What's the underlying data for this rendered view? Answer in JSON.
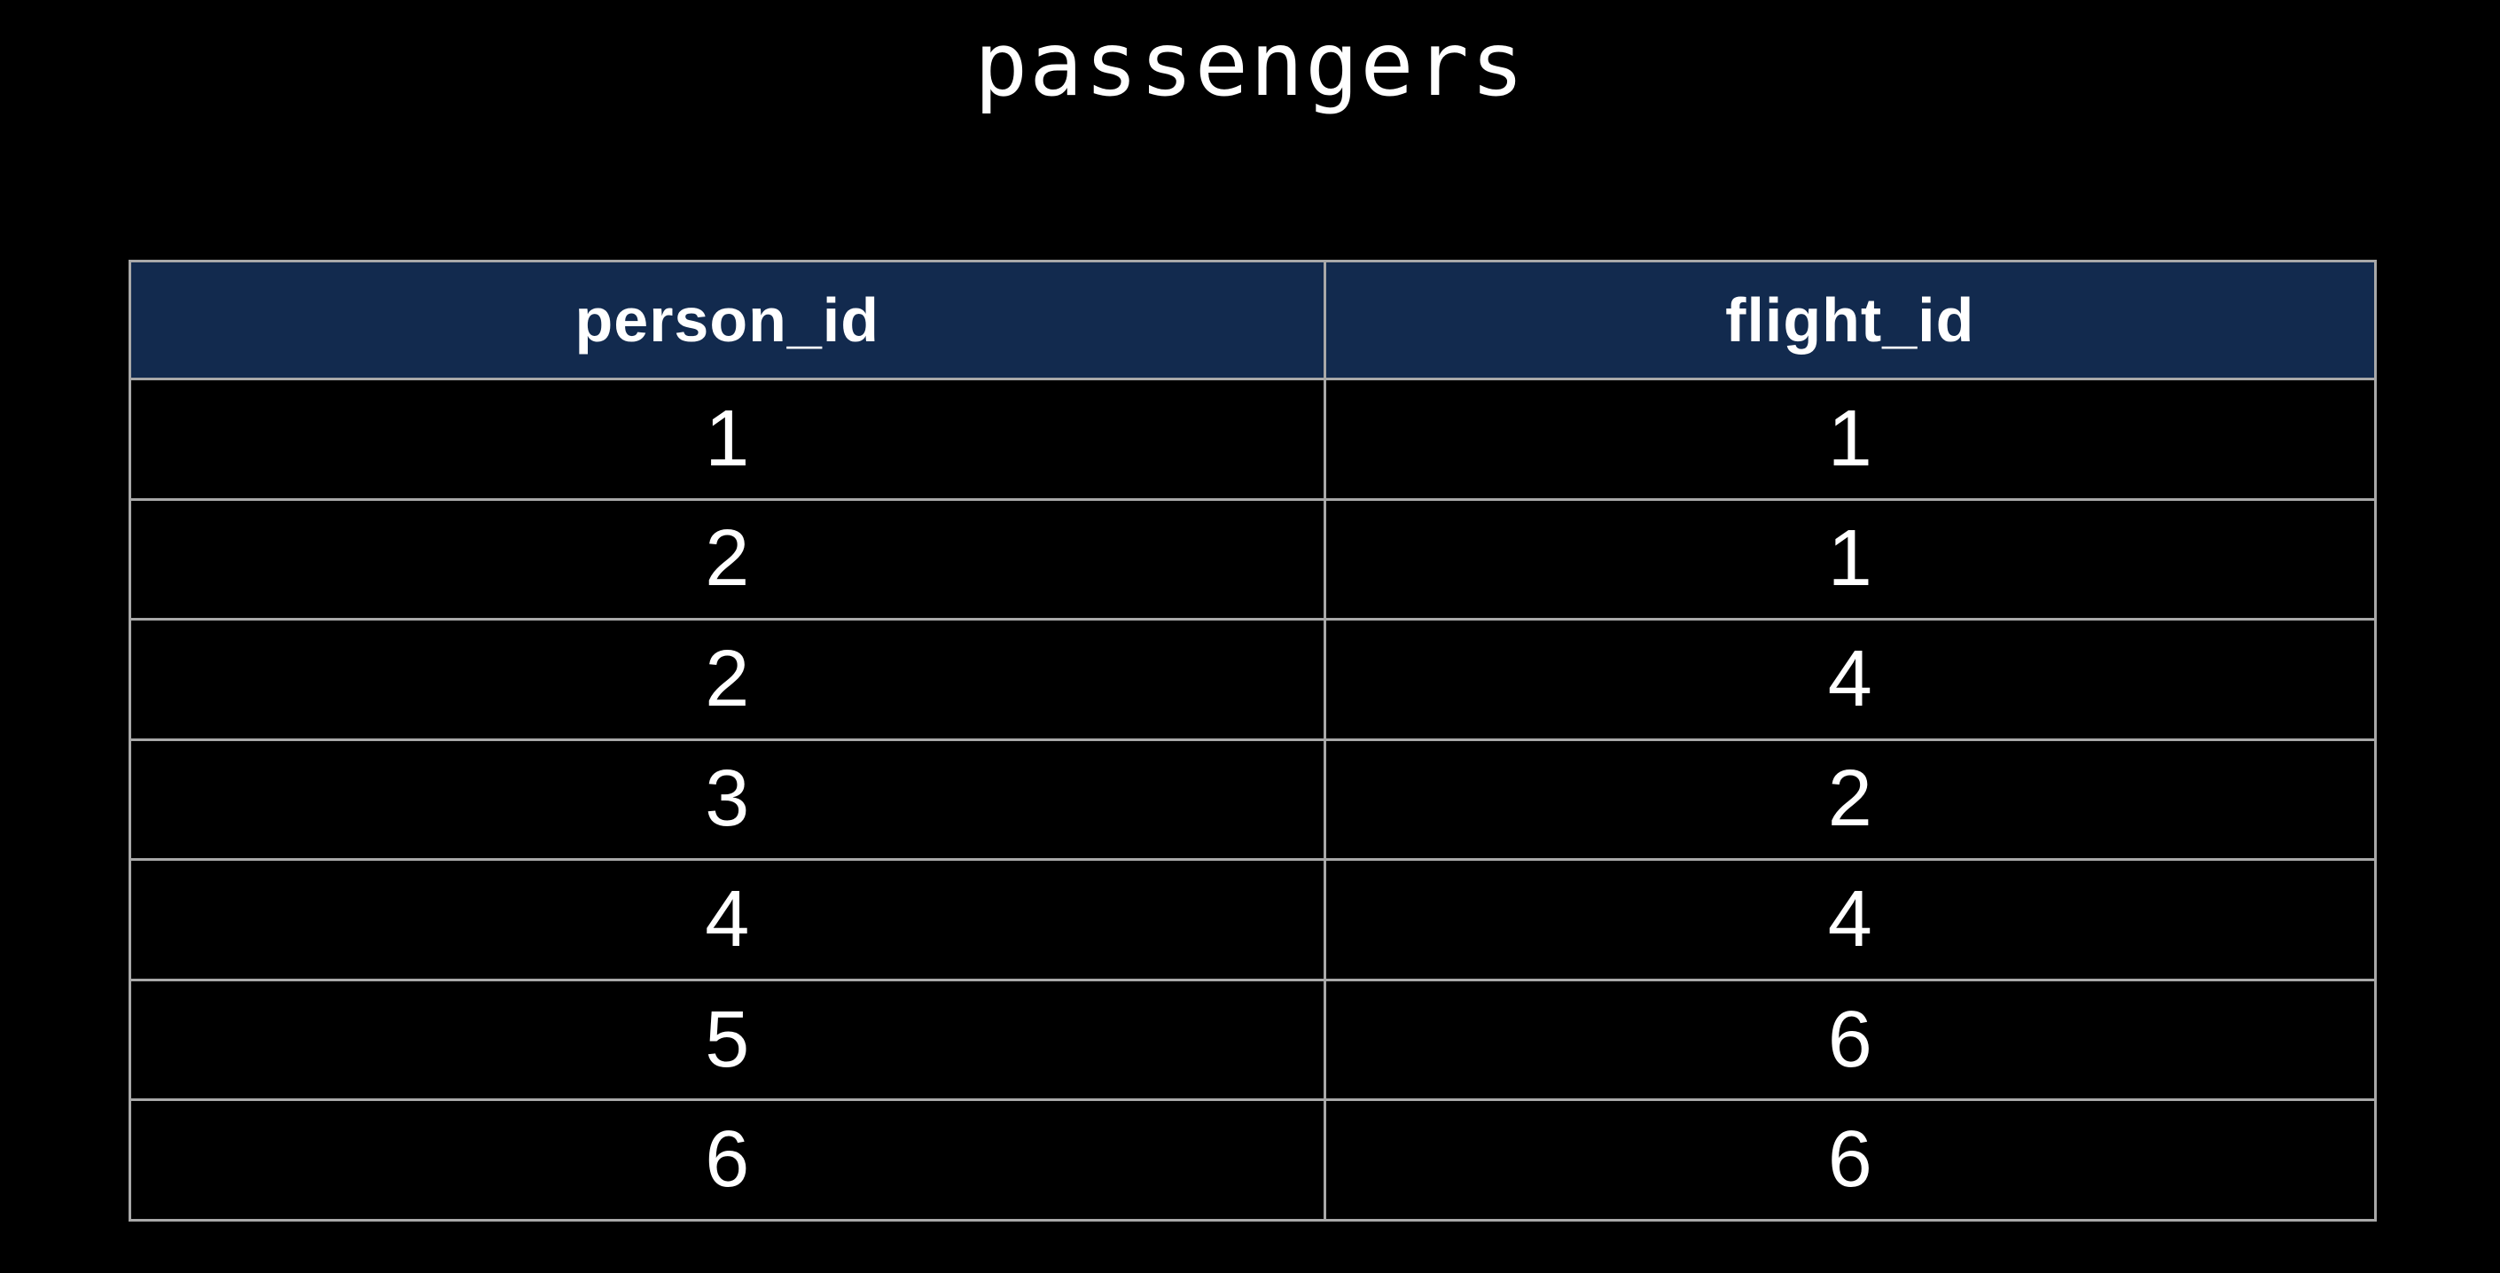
{
  "slide": {
    "background": "#000000",
    "title": "passengers"
  },
  "table": {
    "header": {
      "bg_color": "#122a4e",
      "text_color": "#ffffff",
      "columns": [
        "person_id",
        "flight_id"
      ]
    },
    "border_color": "#a8a8a8",
    "cell_bg_color": "#000000",
    "cell_text_color": "#ffffff",
    "rows": [
      [
        "1",
        "1"
      ],
      [
        "2",
        "1"
      ],
      [
        "2",
        "4"
      ],
      [
        "3",
        "2"
      ],
      [
        "4",
        "4"
      ],
      [
        "5",
        "6"
      ],
      [
        "6",
        "6"
      ]
    ]
  },
  "chart_data": {
    "type": "table",
    "title": "passengers",
    "columns": [
      "person_id",
      "flight_id"
    ],
    "rows": [
      [
        1,
        1
      ],
      [
        2,
        1
      ],
      [
        2,
        4
      ],
      [
        3,
        2
      ],
      [
        4,
        4
      ],
      [
        5,
        6
      ],
      [
        6,
        6
      ]
    ],
    "layout_hints": {
      "background": "black",
      "header_style": "navy background, bold white text",
      "grid": "light gray borders on all cells"
    }
  }
}
